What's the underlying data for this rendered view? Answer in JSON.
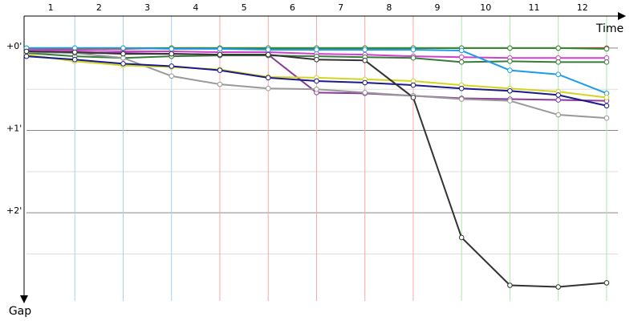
{
  "chart_data": {
    "type": "line",
    "x_label": "Time",
    "y_label": "Gap",
    "categories": [
      "1",
      "2",
      "3",
      "4",
      "5",
      "6",
      "7",
      "8",
      "9",
      "10",
      "11",
      "12"
    ],
    "x": [
      0,
      1,
      2,
      3,
      4,
      5,
      6,
      7,
      8,
      9,
      10,
      11,
      12
    ],
    "xlim": [
      0,
      12.4
    ],
    "xticks": [
      1,
      2,
      3,
      4,
      5,
      6,
      7,
      8,
      9,
      10,
      11,
      12
    ],
    "xgrid_colors": [
      "#a8d0f0",
      "#a8d0f0",
      "#a8d0f0",
      "#f4a8a8",
      "#f4a8a8",
      "#f4a8a8",
      "#f4a8a8",
      "#f4a8a8",
      "#a8e8a8",
      "#a8e8a8",
      "#a8e8a8",
      "#a8e8a8"
    ],
    "ylim": [
      -0.34,
      3.07
    ],
    "yticks": [
      {
        "value": 0,
        "label": "+0'"
      },
      {
        "value": 1,
        "label": "+1'"
      },
      {
        "value": 2,
        "label": "+2'"
      }
    ],
    "minor_yticks": [
      0.5,
      1.5,
      2.5
    ],
    "grid": true,
    "series": [
      {
        "color": "#c03030",
        "values": [
          0.01,
          0.01,
          0.01,
          0,
          0,
          0,
          0,
          0,
          0,
          0,
          0,
          0,
          0
        ]
      },
      {
        "color": "#2e8b2e",
        "values": [
          0,
          0,
          0,
          0,
          0,
          0,
          0,
          0,
          0,
          0,
          0,
          0,
          0.01
        ]
      },
      {
        "color": "#d040d0",
        "values": [
          0.02,
          0.03,
          0.04,
          0.04,
          0.05,
          0.05,
          0.07,
          0.08,
          0.1,
          0.11,
          0.12,
          0.12,
          0.12
        ]
      },
      {
        "color": "#3a7a3a",
        "values": [
          0.06,
          0.1,
          0.12,
          0.1,
          0.09,
          0.09,
          0.1,
          0.11,
          0.12,
          0.17,
          0.16,
          0.17,
          0.17
        ]
      },
      {
        "color": "#1e9be8",
        "values": [
          0,
          0,
          0,
          0.01,
          0.01,
          0.02,
          0.02,
          0.02,
          0.02,
          0.03,
          0.27,
          0.32,
          0.55
        ]
      },
      {
        "color": "#8b3a9b",
        "values": [
          0.04,
          0.06,
          0.06,
          0.07,
          0.08,
          0.08,
          0.54,
          0.55,
          0.58,
          0.61,
          0.62,
          0.63,
          0.64
        ]
      },
      {
        "color": "#999999",
        "values": [
          0.05,
          0.06,
          0.12,
          0.34,
          0.44,
          0.49,
          0.5,
          0.54,
          0.58,
          0.62,
          0.64,
          0.81,
          0.85
        ]
      },
      {
        "color": "#d4d420",
        "values": [
          0.08,
          0.16,
          0.21,
          0.23,
          0.26,
          0.35,
          0.36,
          0.38,
          0.4,
          0.45,
          0.49,
          0.53,
          0.6
        ]
      },
      {
        "color": "#1a1a8c",
        "values": [
          0.1,
          0.14,
          0.19,
          0.22,
          0.27,
          0.36,
          0.4,
          0.42,
          0.45,
          0.49,
          0.52,
          0.57,
          0.7
        ]
      },
      {
        "color": "#333333",
        "values": [
          0.04,
          0.05,
          0.07,
          0.07,
          0.08,
          0.08,
          0.14,
          0.15,
          0.6,
          2.3,
          2.88,
          2.9,
          2.85
        ]
      }
    ]
  }
}
